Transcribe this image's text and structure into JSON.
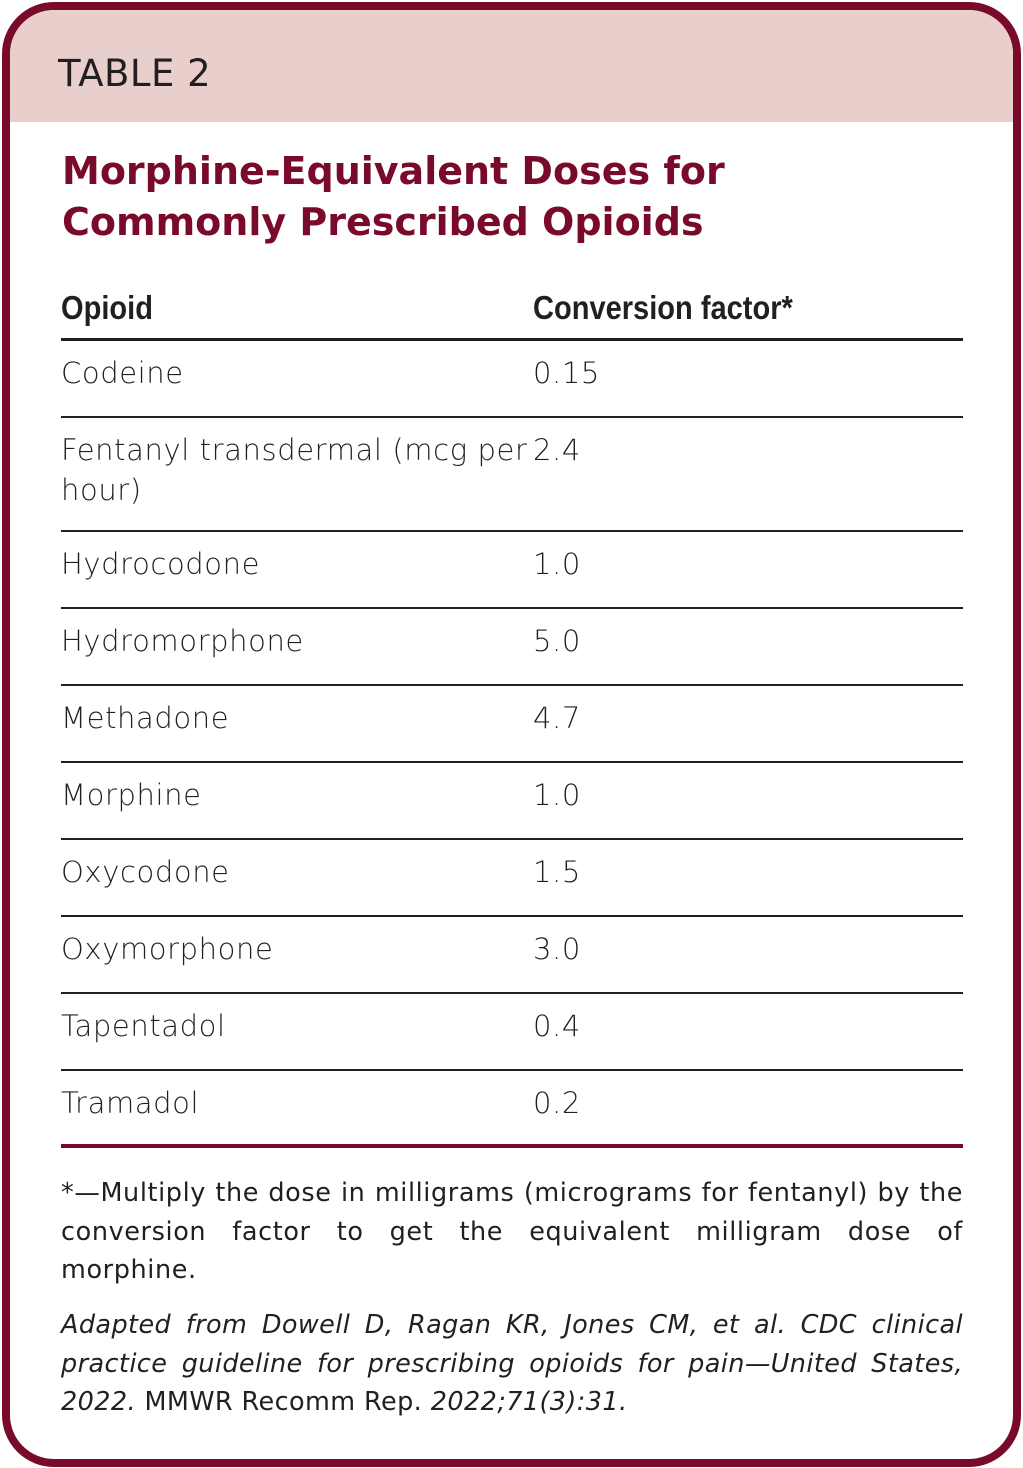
{
  "table_label": "TABLE 2",
  "title": "Morphine-Equivalent Doses for Commonly Prescribed Opioids",
  "columns": [
    "Opioid",
    "Conversion factor*"
  ],
  "rows": [
    [
      "Codeine",
      "0.15"
    ],
    [
      "Fentanyl transdermal (mcg per hour)",
      "2.4"
    ],
    [
      "Hydrocodone",
      "1.0"
    ],
    [
      "Hydromorphone",
      "5.0"
    ],
    [
      "Methadone",
      "4.7"
    ],
    [
      "Morphine",
      "1.0"
    ],
    [
      "Oxycodone",
      "1.5"
    ],
    [
      "Oxymorphone",
      "3.0"
    ],
    [
      "Tapentadol",
      "0.4"
    ],
    [
      "Tramadol",
      "0.2"
    ]
  ],
  "footnote": "*—Multiply the dose in milligrams (micrograms for fentanyl) by the conversion factor to get the equivalent milligram dose of morphine.",
  "citation": {
    "part1": "Adapted from Dowell D, Ragan KR, Jones CM, et al. CDC clinical practice guideline for prescribing opioids for pain—United States, 2022.",
    "part2": " MMWR Recomm Rep. ",
    "part3": "2022;71(3):31."
  },
  "colors": {
    "accent": "#7a0a2a",
    "header_band": "#e8cfcc",
    "text": "#231f20"
  }
}
